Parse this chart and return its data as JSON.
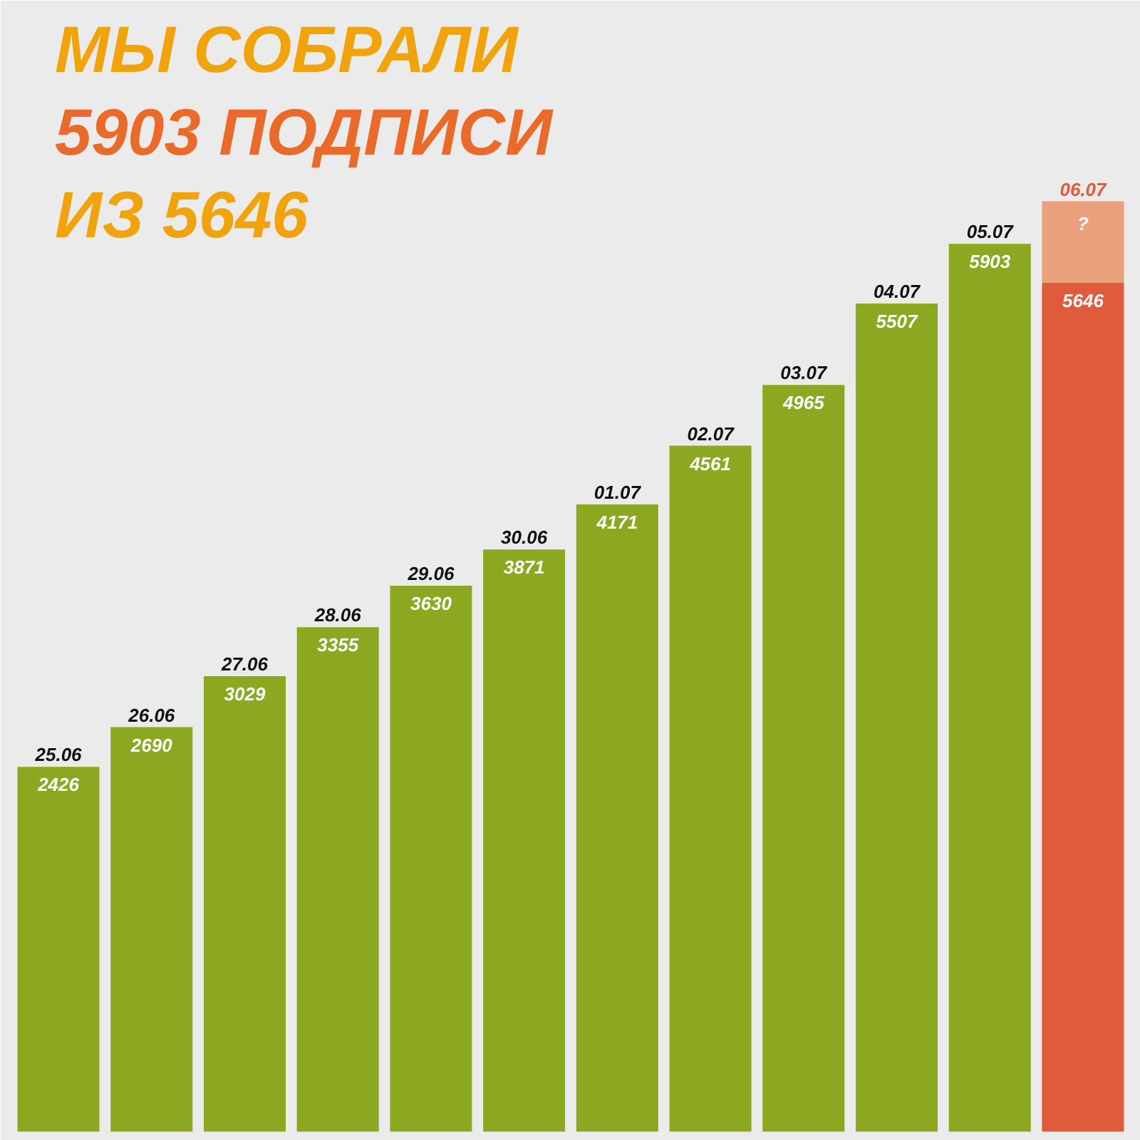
{
  "chart_data": {
    "type": "bar",
    "title": "МЫ СОБРАЛИ\n5903 ПОДПИСИ\nИЗ 5646",
    "stacked": true,
    "data_labels": true,
    "categories": [
      "25.06",
      "26.06",
      "27.06",
      "28.06",
      "29.06",
      "30.06",
      "01.07",
      "02.07",
      "03.07",
      "04.07",
      "05.07",
      "06.07"
    ],
    "series": [
      {
        "colors": [
          "#8ca820",
          "#8ca820",
          "#8ca820",
          "#8ca820",
          "#8ca820",
          "#8ca820",
          "#8ca820",
          "#8ca820",
          "#8ca820",
          "#8ca820",
          "#8ca820",
          "#e05a3c"
        ],
        "values": [
          2426,
          2690,
          3029,
          3355,
          3630,
          3871,
          4171,
          4561,
          4965,
          5507,
          5903,
          5646
        ]
      },
      {
        "color": "#eba07c",
        "values": [
          null,
          null,
          null,
          null,
          null,
          null,
          null,
          null,
          null,
          null,
          null,
          540
        ],
        "value_labels": [
          null,
          null,
          null,
          null,
          null,
          null,
          null,
          null,
          null,
          null,
          null,
          "?"
        ]
      }
    ]
  }
}
